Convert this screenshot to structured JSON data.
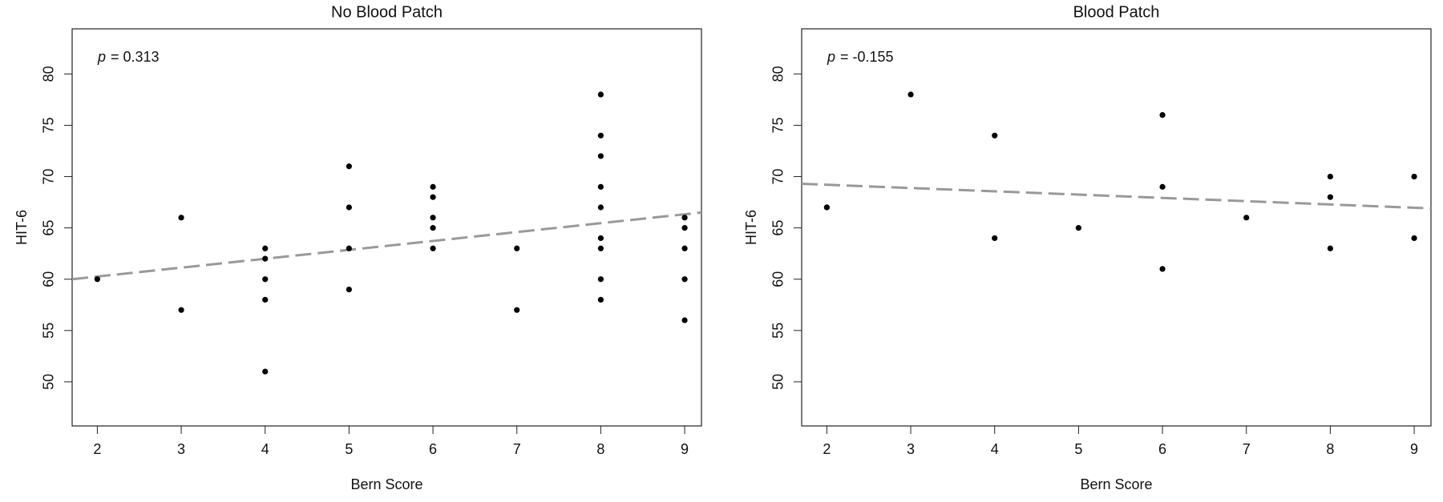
{
  "chart_data": [
    {
      "type": "scatter",
      "title": "No Blood Patch",
      "xlabel": "Bern Score",
      "ylabel": "HIT-6",
      "annotation": {
        "symbol": "p",
        "text": "= 0.313"
      },
      "color": "#000000",
      "trend_color": "#999999",
      "x": [
        2,
        3,
        3,
        4,
        4,
        4,
        4,
        4,
        5,
        5,
        5,
        5,
        6,
        6,
        6,
        6,
        6,
        7,
        7,
        8,
        8,
        8,
        8,
        8,
        8,
        8,
        8,
        8,
        9,
        9,
        9,
        9,
        9
      ],
      "values": [
        60,
        66,
        57,
        63,
        62,
        60,
        58,
        51,
        71,
        67,
        63,
        59,
        69,
        68,
        66,
        65,
        63,
        63,
        57,
        78,
        74,
        72,
        69,
        67,
        64,
        63,
        60,
        58,
        66,
        65,
        63,
        60,
        56
      ],
      "trend_line": {
        "x": [
          1.7,
          9.2
        ],
        "y": [
          60,
          66.5
        ]
      },
      "xlim": [
        1.7,
        9.2
      ],
      "ylim": [
        45.7,
        84.4
      ],
      "xticks": [
        2,
        3,
        4,
        5,
        6,
        7,
        8,
        9
      ],
      "yticks": [
        50,
        55,
        60,
        65,
        70,
        75,
        80
      ]
    },
    {
      "type": "scatter",
      "title": "Blood Patch",
      "xlabel": "Bern Score",
      "ylabel": "HIT-6",
      "annotation": {
        "symbol": "p",
        "text": "= -0.155"
      },
      "color": "#000000",
      "trend_color": "#999999",
      "x": [
        2,
        2,
        3,
        4,
        4,
        5,
        6,
        6,
        6,
        7,
        8,
        8,
        8,
        9,
        9
      ],
      "values": [
        67,
        67,
        78,
        74,
        64,
        65,
        76,
        69,
        61,
        66,
        70,
        68,
        63,
        70,
        64
      ],
      "trend_line": {
        "x": [
          1.7,
          9.2
        ],
        "y": [
          69.3,
          66.9
        ]
      },
      "xlim": [
        1.7,
        9.2
      ],
      "ylim": [
        45.7,
        84.4
      ],
      "xticks": [
        2,
        3,
        4,
        5,
        6,
        7,
        8,
        9
      ],
      "yticks": [
        50,
        55,
        60,
        65,
        70,
        75,
        80
      ]
    }
  ]
}
